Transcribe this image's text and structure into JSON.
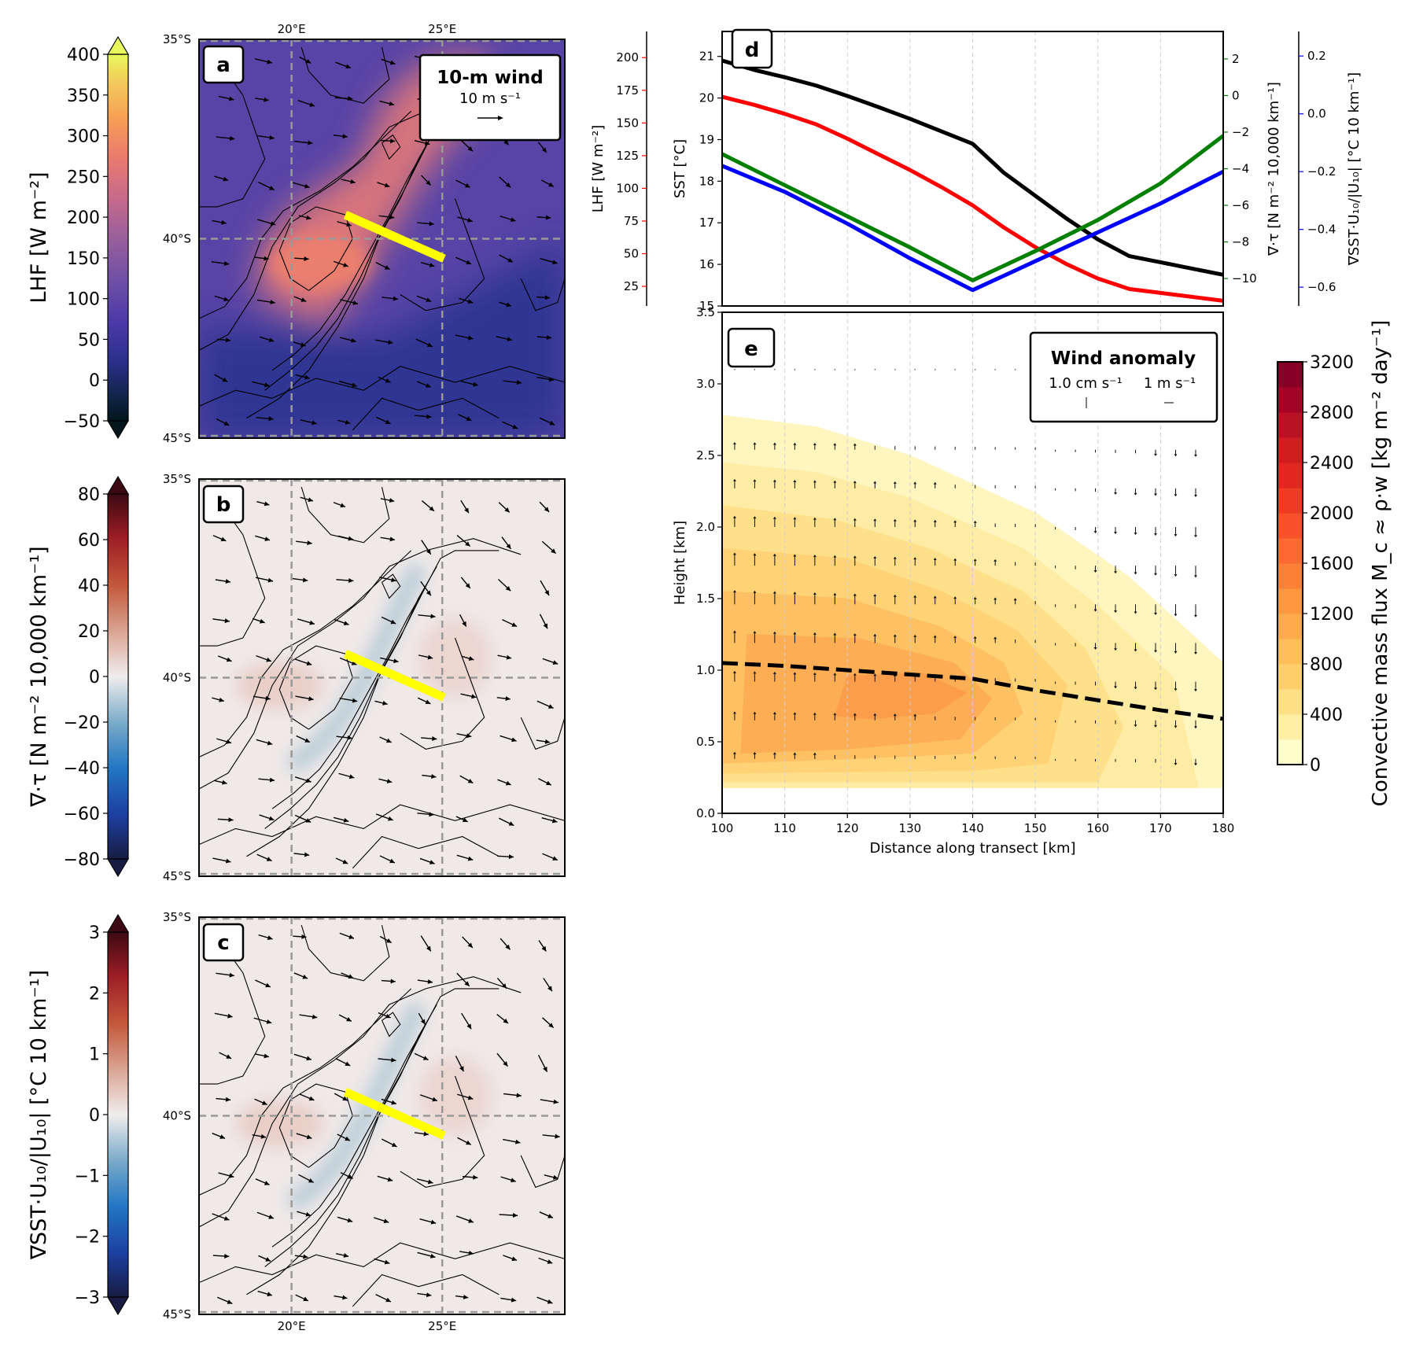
{
  "map_panels": [
    {
      "letter": "a",
      "colorbar": {
        "label": "LHF [W m⁻²]",
        "ticks": [
          400,
          350,
          300,
          250,
          200,
          150,
          100,
          50,
          0,
          -50
        ],
        "vmin": -50,
        "vmax": 400,
        "cmap": "thermal"
      },
      "legend": {
        "title": "10-m wind",
        "scale": "10 m s⁻¹"
      },
      "lat_ticks": [
        "35°S",
        "40°S",
        "45°S"
      ],
      "lon_ticks_top": [
        "20°E",
        "25°E"
      ],
      "field_pattern": "lhf"
    },
    {
      "letter": "b",
      "colorbar": {
        "label": "∇·τ [N m⁻² 10,000 km⁻¹]",
        "ticks": [
          80,
          60,
          40,
          20,
          0,
          -20,
          -40,
          -60,
          -80
        ],
        "vmin": -80,
        "vmax": 80,
        "cmap": "balance"
      },
      "lat_ticks": [
        "35°S",
        "40°S",
        "45°S"
      ],
      "field_pattern": "div"
    },
    {
      "letter": "c",
      "colorbar": {
        "label": "∇SST·U₁₀/|U₁₀| [°C 10 km⁻¹]",
        "ticks": [
          3,
          2,
          1,
          0,
          -1,
          -2,
          -3
        ],
        "vmin": -3,
        "vmax": 3,
        "cmap": "balance"
      },
      "lat_ticks": [
        "35°S",
        "40°S",
        "45°S"
      ],
      "lon_ticks_bottom": [
        "20°E",
        "25°E"
      ],
      "field_pattern": "dcdw"
    }
  ],
  "chart_data": [
    {
      "panel": "d",
      "type": "line",
      "xlim": [
        100,
        180
      ],
      "axes": [
        {
          "label": "SST [°C]",
          "color": "#000000",
          "ylim": [
            15,
            21.6
          ],
          "ticks": [
            15,
            16,
            17,
            18,
            19,
            20,
            21
          ],
          "position": "left"
        },
        {
          "label": "LHF [W m⁻²]",
          "color": "#ff0000",
          "ylim": [
            10,
            220
          ],
          "ticks": [
            25,
            50,
            75,
            100,
            125,
            150,
            175,
            200
          ],
          "position": "far-left"
        },
        {
          "label": "∇·τ [N m⁻² 10,000 km⁻¹]",
          "color": "#008000",
          "ylim": [
            -11.5,
            3.5
          ],
          "ticks": [
            2,
            0,
            -2,
            -4,
            -6,
            -8,
            -10
          ],
          "position": "right"
        },
        {
          "label": "∇SST·U₁₀/|U₁₀| [°C 10 km⁻¹]",
          "color": "#0000ff",
          "ylim": [
            -0.665,
            0.285
          ],
          "ticks": [
            0.2,
            0.0,
            -0.2,
            -0.4,
            -0.6
          ],
          "position": "far-right"
        }
      ],
      "series": [
        {
          "axis": 0,
          "color": "#000000",
          "x": [
            100,
            105,
            110,
            115,
            120,
            125,
            130,
            135,
            140,
            145,
            150,
            155,
            160,
            165,
            170,
            175,
            180
          ],
          "y": [
            20.9,
            20.68,
            20.5,
            20.3,
            20.05,
            19.78,
            19.5,
            19.2,
            18.9,
            18.2,
            17.65,
            17.1,
            16.6,
            16.2,
            16.05,
            15.9,
            15.75
          ]
        },
        {
          "axis": 1,
          "color": "#ff0000",
          "x": [
            100,
            105,
            110,
            115,
            120,
            125,
            130,
            135,
            140,
            145,
            150,
            155,
            160,
            165,
            170,
            175,
            180
          ],
          "y": [
            170,
            164,
            157,
            149,
            138,
            126,
            114,
            101,
            87,
            70,
            55,
            42,
            31,
            23,
            20,
            17,
            14
          ]
        },
        {
          "axis": 2,
          "color": "#008000",
          "x": [
            100,
            110,
            120,
            130,
            140,
            150,
            160,
            170,
            180
          ],
          "y": [
            -3.2,
            -4.9,
            -6.6,
            -8.3,
            -10.1,
            -8.5,
            -6.8,
            -4.8,
            -2.2
          ]
        },
        {
          "axis": 3,
          "color": "#0000ff",
          "x": [
            100,
            110,
            120,
            130,
            140,
            150,
            160,
            170,
            180
          ],
          "y": [
            -0.18,
            -0.27,
            -0.38,
            -0.5,
            -0.61,
            -0.51,
            -0.41,
            -0.31,
            -0.2
          ]
        }
      ]
    },
    {
      "panel": "e",
      "type": "heatmap",
      "xlabel": "Distance along transect [km]",
      "ylabel": "Height [km]",
      "xlim": [
        100,
        180
      ],
      "ylim": [
        0,
        3.5
      ],
      "xticks": [
        100,
        110,
        120,
        130,
        140,
        150,
        160,
        170,
        180
      ],
      "yticks": [
        0.0,
        0.5,
        1.0,
        1.5,
        2.0,
        2.5,
        3.0,
        3.5
      ],
      "colorbar": {
        "label": "Convective mass flux M_c ≈ ρ·w [kg m⁻² day⁻¹]",
        "ticks": [
          3200,
          2800,
          2400,
          2000,
          1600,
          1200,
          800,
          400,
          0
        ],
        "vmin": 0,
        "vmax": 3200,
        "cmap": "YlOrRd"
      },
      "field": {
        "peak_value": 1450,
        "peak_x": 127,
        "peak_y": 0.85
      },
      "legend": {
        "title": "Wind anomaly",
        "scale_w": "1.0 cm s⁻¹",
        "scale_u": "1 m s⁻¹"
      },
      "boundary_layer": {
        "x": [
          100,
          110,
          120,
          130,
          140,
          150,
          160,
          170,
          180
        ],
        "y": [
          1.05,
          1.03,
          1.0,
          0.97,
          0.94,
          0.86,
          0.79,
          0.72,
          0.66
        ]
      }
    }
  ]
}
